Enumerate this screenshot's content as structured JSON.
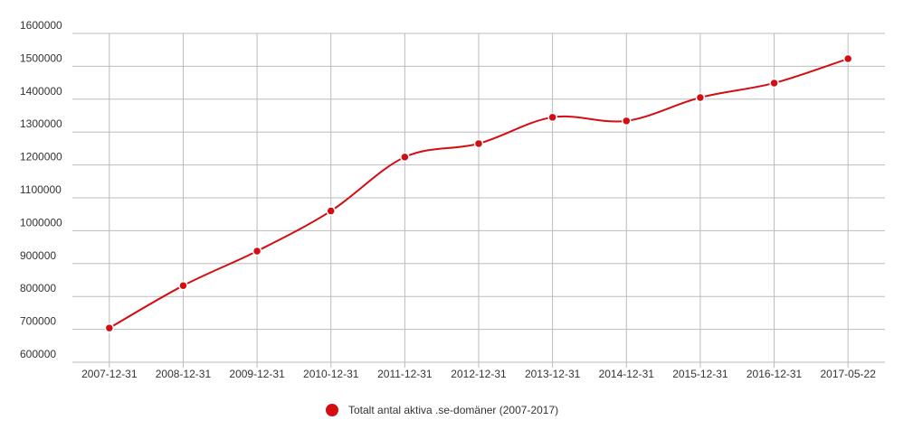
{
  "chart_data": {
    "type": "line",
    "categories": [
      "2007-12-31",
      "2008-12-31",
      "2009-12-31",
      "2010-12-31",
      "2011-12-31",
      "2012-12-31",
      "2013-12-31",
      "2014-12-31",
      "2015-12-31",
      "2016-12-31",
      "2017-05-22"
    ],
    "series": [
      {
        "name": "Totalt antal aktiva .se-domäner (2007-2017)",
        "color": "#d40d12",
        "values": [
          704000,
          833000,
          938000,
          1060000,
          1224000,
          1265000,
          1345000,
          1334000,
          1405000,
          1449000,
          1523000
        ]
      }
    ],
    "ylim": [
      600000,
      1600000
    ],
    "yticks": [
      600000,
      700000,
      800000,
      900000,
      1000000,
      1100000,
      1200000,
      1300000,
      1400000,
      1500000,
      1600000
    ],
    "grid": true,
    "legend": "bottom"
  }
}
